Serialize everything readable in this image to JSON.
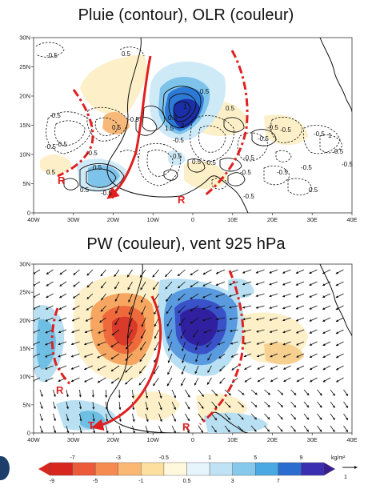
{
  "chart_data": [
    {
      "type": "contour",
      "title": "Pluie (contour), OLR (couleur)",
      "xlim": [
        -40,
        40
      ],
      "ylim": [
        0,
        30
      ],
      "x_ticks": [
        "40W",
        "30W",
        "20W",
        "10W",
        "0",
        "10E",
        "20E",
        "30E",
        "40E"
      ],
      "y_ticks": [
        "0",
        "5N",
        "10N",
        "15N",
        "20N",
        "25N",
        "30N"
      ],
      "olr_anomalies": [
        {
          "lon": 0,
          "lat": 17,
          "value": -30
        },
        {
          "lon": 5,
          "lat": 8,
          "value": 12
        },
        {
          "lon": -20,
          "lat": 8,
          "value": -15
        },
        {
          "lon": -17,
          "lat": 15,
          "value": 10
        },
        {
          "lon": 20,
          "lat": 15,
          "value": 8
        }
      ],
      "contour_labels": [
        "-0.5",
        "0.5",
        "-0.5",
        "0.5",
        "1",
        "2",
        "1.5",
        "-0.5",
        "-0.5",
        "0.5",
        "-0.5",
        "0.5",
        "-0.5",
        "1",
        "0.5",
        "-0.5",
        "0.5",
        "-0.5",
        "0.5",
        "0.5",
        "-0.5",
        "0.5",
        "-0.5",
        "-0.5",
        "0.5",
        "-0.5",
        "-0.5",
        "-0.5",
        "-0.5",
        "-0.5",
        "0.5",
        "-0.5",
        "0.5",
        "-0.5",
        "-0.5"
      ],
      "annotations": [
        "R",
        "T",
        "R"
      ]
    },
    {
      "type": "vector-field",
      "title": "PW (couleur), vent 925 hPa",
      "xlim": [
        -40,
        40
      ],
      "ylim": [
        0,
        30
      ],
      "x_ticks": [
        "40W",
        "30W",
        "20W",
        "10W",
        "0",
        "10E",
        "20E",
        "30E",
        "40E"
      ],
      "y_ticks": [
        "0",
        "5N",
        "10N",
        "15N",
        "20N",
        "25N",
        "30N"
      ],
      "pw_anomalies": [
        {
          "lon": -18,
          "lat": 18,
          "value": -9
        },
        {
          "lon": 2,
          "lat": 18,
          "value": 9
        },
        {
          "lon": -35,
          "lat": 16,
          "value": 3
        },
        {
          "lon": 22,
          "lat": 15,
          "value": -3
        },
        {
          "lon": -20,
          "lat": 5,
          "value": 3
        },
        {
          "lon": 0,
          "lat": 6,
          "value": -3
        },
        {
          "lon": 14,
          "lat": 24,
          "value": 1
        }
      ],
      "annotations": [
        "R",
        "T",
        "R"
      ],
      "colorbar": {
        "unit": "kg/m²",
        "labels_top": [
          "-7",
          "-3",
          "-0.5",
          "1",
          "5",
          "9"
        ],
        "labels_bottom": [
          "-9",
          "-5",
          "-1",
          "0.5",
          "3",
          "7"
        ]
      },
      "reference_vector": "1"
    }
  ]
}
